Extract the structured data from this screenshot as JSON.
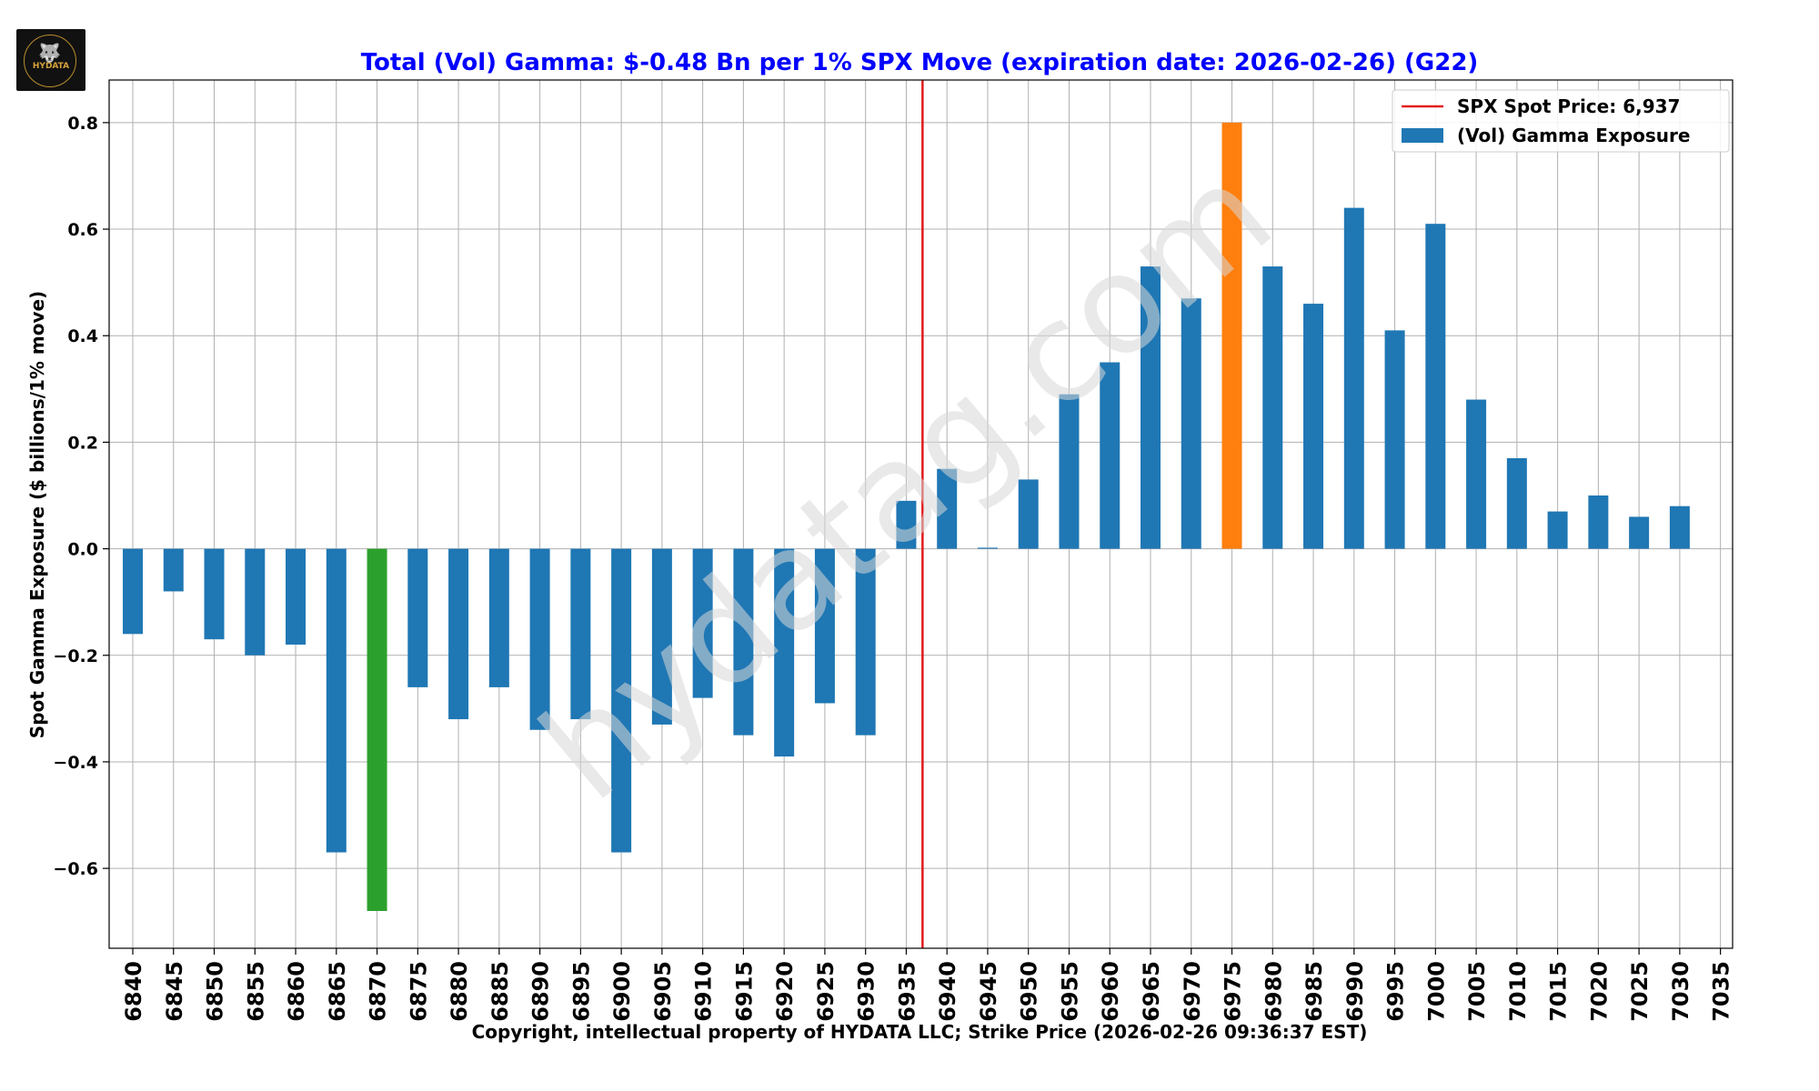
{
  "logo": {
    "text": "HYDATA",
    "icon": "wolf-icon"
  },
  "chart_data": {
    "type": "bar",
    "title": "Total (Vol) Gamma: $-0.48 Bn per 1% SPX Move (expiration date: 2026-02-26) (G22)",
    "xlabel": "Copyright, intellectual property of HYDATA LLC; Strike Price (2026-02-26 09:36:37 EST)",
    "ylabel": "Spot Gamma Exposure ($ billions/1% move)",
    "ylim": [
      -0.75,
      0.88
    ],
    "yticks": [
      -0.6,
      -0.4,
      -0.2,
      0.0,
      0.2,
      0.4,
      0.6,
      0.8
    ],
    "ytick_labels": [
      "−0.6",
      "−0.4",
      "−0.2",
      "0.0",
      "0.2",
      "0.4",
      "0.6",
      "0.8"
    ],
    "grid": true,
    "categories": [
      "6840",
      "6845",
      "6850",
      "6855",
      "6860",
      "6865",
      "6870",
      "6875",
      "6880",
      "6885",
      "6890",
      "6895",
      "6900",
      "6905",
      "6910",
      "6915",
      "6920",
      "6925",
      "6930",
      "6935",
      "6940",
      "6945",
      "6950",
      "6955",
      "6960",
      "6965",
      "6970",
      "6975",
      "6980",
      "6985",
      "6990",
      "6995",
      "7000",
      "7005",
      "7010",
      "7015",
      "7020",
      "7025",
      "7030",
      "7035"
    ],
    "series": [
      {
        "name": "(Vol) Gamma Exposure",
        "values": [
          -0.16,
          -0.08,
          -0.17,
          -0.2,
          -0.18,
          -0.57,
          -0.68,
          -0.26,
          -0.32,
          -0.26,
          -0.34,
          -0.32,
          -0.57,
          -0.33,
          -0.28,
          -0.35,
          -0.39,
          -0.29,
          -0.35,
          0.09,
          0.15,
          0.002,
          0.13,
          0.29,
          0.35,
          0.53,
          0.47,
          0.8,
          0.53,
          0.46,
          0.64,
          0.41,
          0.61,
          0.28,
          0.17,
          0.07,
          0.1,
          0.06,
          0.08,
          null
        ]
      }
    ],
    "colors": {
      "bar": "#1f77b4",
      "min_bar": "#2ca02c",
      "max_bar": "#ff7f0e",
      "spot_line": "#e31a1c",
      "title": "#0000ff",
      "grid": "#b0b0b0",
      "watermark": "#d8d8d8"
    },
    "highlight": {
      "min_category": "6870",
      "max_category": "6975"
    },
    "spot_price": {
      "value": 6937,
      "label": "SPX Spot Price: 6,937"
    },
    "legend": {
      "position": "top-right",
      "entries": [
        "SPX Spot Price: 6,937",
        "(Vol) Gamma Exposure"
      ]
    },
    "watermark": "hydatag.com"
  }
}
